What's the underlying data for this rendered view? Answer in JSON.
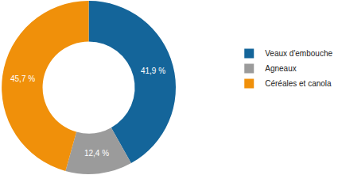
{
  "chart_data": {
    "type": "pie",
    "categories": [
      "Veaux d'embouche",
      "Agneaux",
      "Céréales et canola"
    ],
    "values": [
      41.9,
      12.4,
      45.7
    ],
    "value_labels": [
      "41,9 %",
      "12,4 %",
      "45,7 %"
    ],
    "colors": [
      "#14659a",
      "#9b9b9b",
      "#f0900a"
    ],
    "data_labels": true,
    "legend": "right"
  }
}
